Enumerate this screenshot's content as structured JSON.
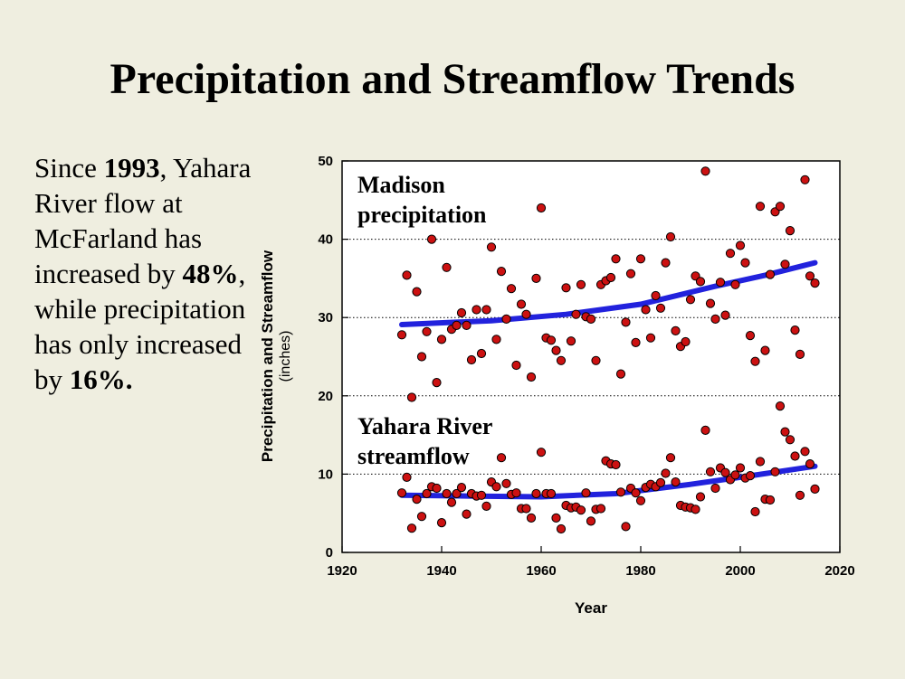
{
  "title": "Precipitation and Streamflow Trends",
  "summary": {
    "p1": "Since ",
    "year": "1993",
    "p2": ", Yahara River flow at McFarland has increased by ",
    "flow_pct": "48%",
    "p3": ", while precipitation has only increased by ",
    "precip_pct": "16%",
    "p4": "."
  },
  "chart_data": {
    "type": "scatter",
    "title": "",
    "xlabel": "Year",
    "ylabel": "Precipitation and Streamflow",
    "ylabel_units": "(inches)",
    "xlim": [
      1920,
      2020
    ],
    "ylim": [
      0,
      50
    ],
    "x_ticks": [
      1920,
      1940,
      1960,
      1980,
      2000,
      2020
    ],
    "y_ticks": [
      0,
      10,
      20,
      30,
      40,
      50
    ],
    "grid": "dotted horizontal",
    "annotations": [
      {
        "text_lines": [
          "Madison",
          "precipitation"
        ],
        "series": "precipitation"
      },
      {
        "text_lines": [
          "Yahara River",
          "streamflow"
        ],
        "series": "streamflow"
      }
    ],
    "point_color": "#cc1111",
    "trend_color": "#2222dd",
    "series": [
      {
        "key": "precipitation",
        "points": [
          [
            1932,
            27.8
          ],
          [
            1933,
            35.4
          ],
          [
            1934,
            19.8
          ],
          [
            1935,
            33.3
          ],
          [
            1936,
            25.0
          ],
          [
            1937,
            28.2
          ],
          [
            1938,
            40.0
          ],
          [
            1939,
            21.7
          ],
          [
            1940,
            27.2
          ],
          [
            1941,
            36.4
          ],
          [
            1942,
            28.5
          ],
          [
            1943,
            29.0
          ],
          [
            1944,
            30.6
          ],
          [
            1945,
            29.0
          ],
          [
            1946,
            24.6
          ],
          [
            1947,
            31.0
          ],
          [
            1948,
            25.4
          ],
          [
            1949,
            31.0
          ],
          [
            1950,
            39.0
          ],
          [
            1951,
            27.2
          ],
          [
            1952,
            35.9
          ],
          [
            1953,
            29.8
          ],
          [
            1954,
            33.7
          ],
          [
            1955,
            23.9
          ],
          [
            1956,
            31.7
          ],
          [
            1957,
            30.4
          ],
          [
            1958,
            22.4
          ],
          [
            1959,
            35.0
          ],
          [
            1960,
            44.0
          ],
          [
            1961,
            27.4
          ],
          [
            1962,
            27.1
          ],
          [
            1963,
            25.8
          ],
          [
            1964,
            24.5
          ],
          [
            1965,
            33.8
          ],
          [
            1966,
            27.0
          ],
          [
            1967,
            30.4
          ],
          [
            1968,
            34.2
          ],
          [
            1969,
            30.1
          ],
          [
            1970,
            29.8
          ],
          [
            1971,
            24.5
          ],
          [
            1972,
            34.2
          ],
          [
            1973,
            34.7
          ],
          [
            1974,
            35.1
          ],
          [
            1975,
            37.5
          ],
          [
            1976,
            22.8
          ],
          [
            1977,
            29.4
          ],
          [
            1978,
            35.6
          ],
          [
            1979,
            26.8
          ],
          [
            1980,
            37.5
          ],
          [
            1981,
            31.0
          ],
          [
            1982,
            27.4
          ],
          [
            1983,
            32.8
          ],
          [
            1984,
            31.2
          ],
          [
            1985,
            37.0
          ],
          [
            1986,
            40.3
          ],
          [
            1987,
            28.3
          ],
          [
            1988,
            26.3
          ],
          [
            1989,
            26.9
          ],
          [
            1990,
            32.3
          ],
          [
            1991,
            35.3
          ],
          [
            1992,
            34.6
          ],
          [
            1993,
            48.7
          ],
          [
            1994,
            31.8
          ],
          [
            1995,
            29.8
          ],
          [
            1996,
            34.5
          ],
          [
            1997,
            30.3
          ],
          [
            1998,
            38.2
          ],
          [
            1999,
            34.2
          ],
          [
            2000,
            39.2
          ],
          [
            2001,
            37.0
          ],
          [
            2002,
            27.7
          ],
          [
            2003,
            24.4
          ],
          [
            2004,
            44.2
          ],
          [
            2005,
            25.8
          ],
          [
            2006,
            35.5
          ],
          [
            2007,
            43.5
          ],
          [
            2008,
            44.2
          ],
          [
            2009,
            36.8
          ],
          [
            2010,
            41.1
          ],
          [
            2011,
            28.4
          ],
          [
            2012,
            25.3
          ],
          [
            2013,
            47.6
          ],
          [
            2014,
            35.3
          ],
          [
            2015,
            34.4
          ]
        ],
        "trend": [
          [
            1932,
            29.1
          ],
          [
            1950,
            29.6
          ],
          [
            1965,
            30.4
          ],
          [
            1980,
            31.7
          ],
          [
            1995,
            34.0
          ],
          [
            2005,
            35.4
          ],
          [
            2015,
            37.0
          ]
        ]
      },
      {
        "key": "streamflow",
        "points": [
          [
            1932,
            7.6
          ],
          [
            1933,
            9.6
          ],
          [
            1934,
            3.1
          ],
          [
            1935,
            6.8
          ],
          [
            1936,
            4.6
          ],
          [
            1937,
            7.5
          ],
          [
            1938,
            8.4
          ],
          [
            1939,
            8.2
          ],
          [
            1940,
            3.8
          ],
          [
            1941,
            7.5
          ],
          [
            1942,
            6.4
          ],
          [
            1943,
            7.5
          ],
          [
            1944,
            8.3
          ],
          [
            1945,
            4.9
          ],
          [
            1946,
            7.5
          ],
          [
            1947,
            7.2
          ],
          [
            1948,
            7.3
          ],
          [
            1949,
            5.9
          ],
          [
            1950,
            9.0
          ],
          [
            1951,
            8.4
          ],
          [
            1952,
            12.1
          ],
          [
            1953,
            8.8
          ],
          [
            1954,
            7.4
          ],
          [
            1955,
            7.6
          ],
          [
            1956,
            5.6
          ],
          [
            1957,
            5.6
          ],
          [
            1958,
            4.4
          ],
          [
            1959,
            7.5
          ],
          [
            1960,
            12.8
          ],
          [
            1961,
            7.5
          ],
          [
            1962,
            7.5
          ],
          [
            1963,
            4.4
          ],
          [
            1964,
            3.0
          ],
          [
            1965,
            6.0
          ],
          [
            1966,
            5.7
          ],
          [
            1967,
            5.8
          ],
          [
            1968,
            5.4
          ],
          [
            1969,
            7.6
          ],
          [
            1970,
            4.0
          ],
          [
            1971,
            5.5
          ],
          [
            1972,
            5.6
          ],
          [
            1973,
            11.7
          ],
          [
            1974,
            11.3
          ],
          [
            1975,
            11.2
          ],
          [
            1976,
            7.7
          ],
          [
            1977,
            3.3
          ],
          [
            1978,
            8.2
          ],
          [
            1979,
            7.6
          ],
          [
            1980,
            6.6
          ],
          [
            1981,
            8.3
          ],
          [
            1982,
            8.7
          ],
          [
            1983,
            8.4
          ],
          [
            1984,
            8.9
          ],
          [
            1985,
            10.1
          ],
          [
            1986,
            12.1
          ],
          [
            1987,
            9.0
          ],
          [
            1988,
            6.0
          ],
          [
            1989,
            5.8
          ],
          [
            1990,
            5.7
          ],
          [
            1991,
            5.5
          ],
          [
            1992,
            7.1
          ],
          [
            1993,
            15.6
          ],
          [
            1994,
            10.3
          ],
          [
            1995,
            8.2
          ],
          [
            1996,
            10.8
          ],
          [
            1997,
            10.2
          ],
          [
            1998,
            9.3
          ],
          [
            1999,
            9.9
          ],
          [
            2000,
            10.8
          ],
          [
            2001,
            9.5
          ],
          [
            2002,
            9.8
          ],
          [
            2003,
            5.2
          ],
          [
            2004,
            11.6
          ],
          [
            2005,
            6.8
          ],
          [
            2006,
            6.7
          ],
          [
            2007,
            10.3
          ],
          [
            2008,
            18.7
          ],
          [
            2009,
            15.4
          ],
          [
            2010,
            14.4
          ],
          [
            2011,
            12.3
          ],
          [
            2012,
            7.3
          ],
          [
            2013,
            12.9
          ],
          [
            2014,
            11.3
          ],
          [
            2015,
            8.1
          ]
        ],
        "trend": [
          [
            1932,
            7.3
          ],
          [
            1945,
            7.2
          ],
          [
            1960,
            7.1
          ],
          [
            1975,
            7.5
          ],
          [
            1990,
            8.7
          ],
          [
            2000,
            9.6
          ],
          [
            2015,
            11.0
          ]
        ]
      }
    ]
  }
}
